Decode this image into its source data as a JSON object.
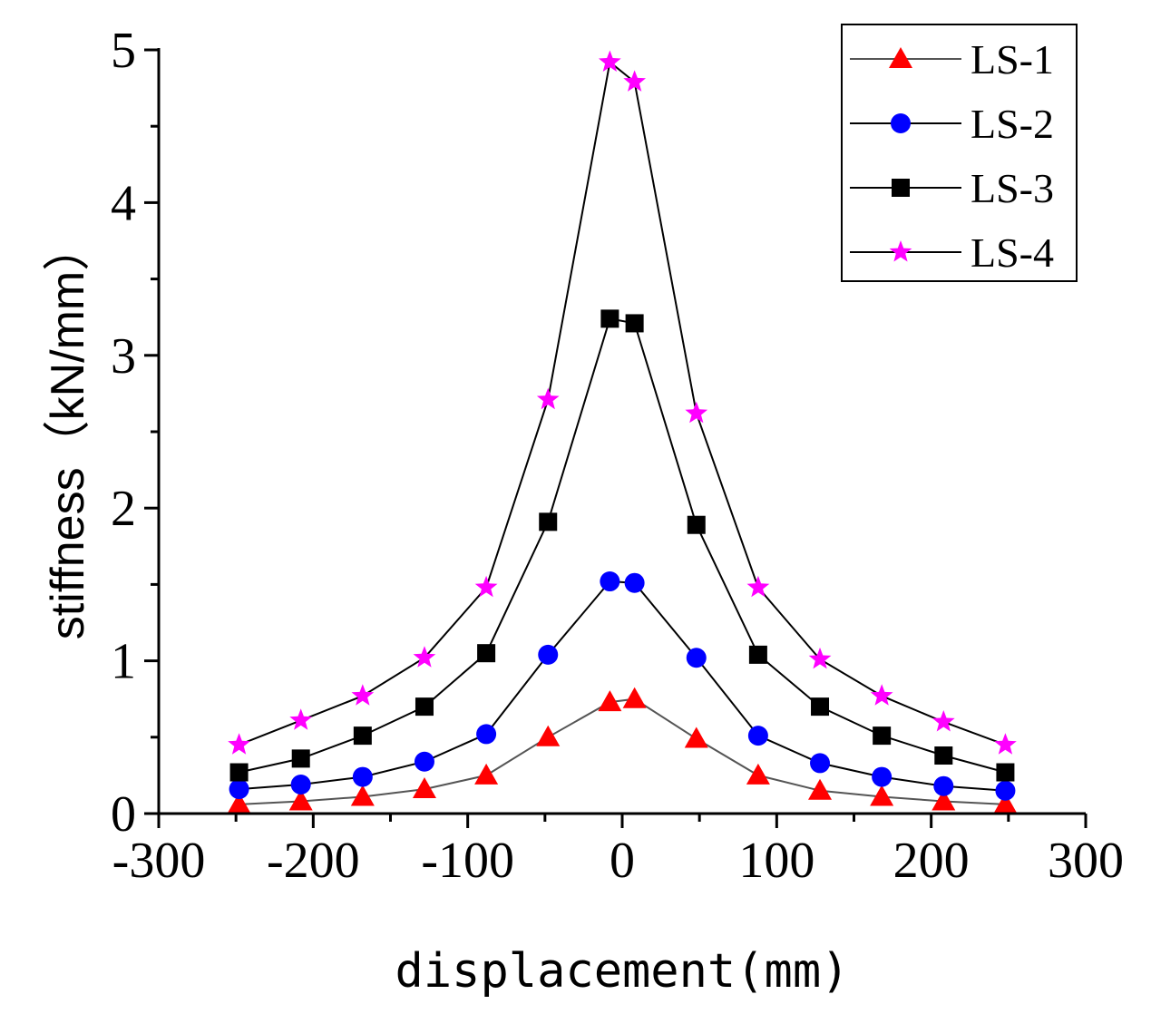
{
  "chart_data": {
    "type": "line",
    "title": "",
    "xlabel": "displacement(mm)",
    "ylabel": "stiffness（kN/mm）",
    "xlim": [
      -300,
      300
    ],
    "ylim": [
      0,
      5
    ],
    "xticks": [
      -300,
      -200,
      -100,
      0,
      100,
      200,
      300
    ],
    "xtick_labels": [
      "-300",
      "-200",
      "-100",
      "0",
      "100",
      "200",
      "300"
    ],
    "yticks": [
      0,
      1,
      2,
      3,
      4,
      5
    ],
    "ytick_labels": [
      "0",
      "1",
      "2",
      "3",
      "4",
      "5"
    ],
    "grid": false,
    "legend_position": "top-right",
    "x": [
      -248,
      -208,
      -168,
      -128,
      -88,
      -48,
      -8,
      8,
      48,
      88,
      128,
      168,
      208,
      248
    ],
    "series": [
      {
        "name": "LS-1",
        "marker": "triangle",
        "color": "#ff0000",
        "line_color": "#555555",
        "values": [
          0.06,
          0.08,
          0.11,
          0.16,
          0.25,
          0.5,
          0.73,
          0.75,
          0.49,
          0.25,
          0.15,
          0.11,
          0.08,
          0.06
        ]
      },
      {
        "name": "LS-2",
        "marker": "circle",
        "color": "#0000ff",
        "line_color": "#000000",
        "values": [
          0.16,
          0.19,
          0.24,
          0.34,
          0.52,
          1.04,
          1.52,
          1.51,
          1.02,
          0.51,
          0.33,
          0.24,
          0.18,
          0.15
        ]
      },
      {
        "name": "LS-3",
        "marker": "square",
        "color": "#000000",
        "line_color": "#000000",
        "values": [
          0.27,
          0.36,
          0.51,
          0.7,
          1.05,
          1.91,
          3.24,
          3.21,
          1.89,
          1.04,
          0.7,
          0.51,
          0.38,
          0.27
        ]
      },
      {
        "name": "LS-4",
        "marker": "star",
        "color": "#ff00ff",
        "line_color": "#000000",
        "values": [
          0.45,
          0.61,
          0.77,
          1.02,
          1.48,
          2.71,
          4.92,
          4.79,
          2.62,
          1.48,
          1.01,
          0.77,
          0.6,
          0.45
        ]
      }
    ]
  }
}
